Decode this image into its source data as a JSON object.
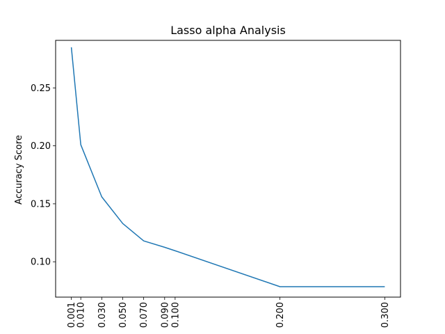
{
  "chart_data": {
    "type": "line",
    "title": "Lasso alpha Analysis",
    "xlabel": "",
    "ylabel": "Accuracy Score",
    "xlim": [
      -0.014,
      0.315
    ],
    "ylim": [
      0.0695,
      0.291
    ],
    "xticks": [
      0.001,
      0.01,
      0.03,
      0.05,
      0.07,
      0.09,
      0.1,
      0.2,
      0.3
    ],
    "xtick_labels": [
      "0.001",
      "0.010",
      "0.030",
      "0.050",
      "0.070",
      "0.090",
      "0.100",
      "0.200",
      "0.300"
    ],
    "yticks": [
      0.1,
      0.15,
      0.2,
      0.25
    ],
    "ytick_labels": [
      "0.10",
      "0.15",
      "0.20",
      "0.25"
    ],
    "grid": false,
    "series": [
      {
        "color": "#1f77b4",
        "x": [
          0.001,
          0.01,
          0.03,
          0.05,
          0.07,
          0.09,
          0.1,
          0.2,
          0.3
        ],
        "y": [
          0.285,
          0.201,
          0.156,
          0.133,
          0.118,
          0.1125,
          0.1095,
          0.0785,
          0.0785
        ]
      }
    ]
  }
}
